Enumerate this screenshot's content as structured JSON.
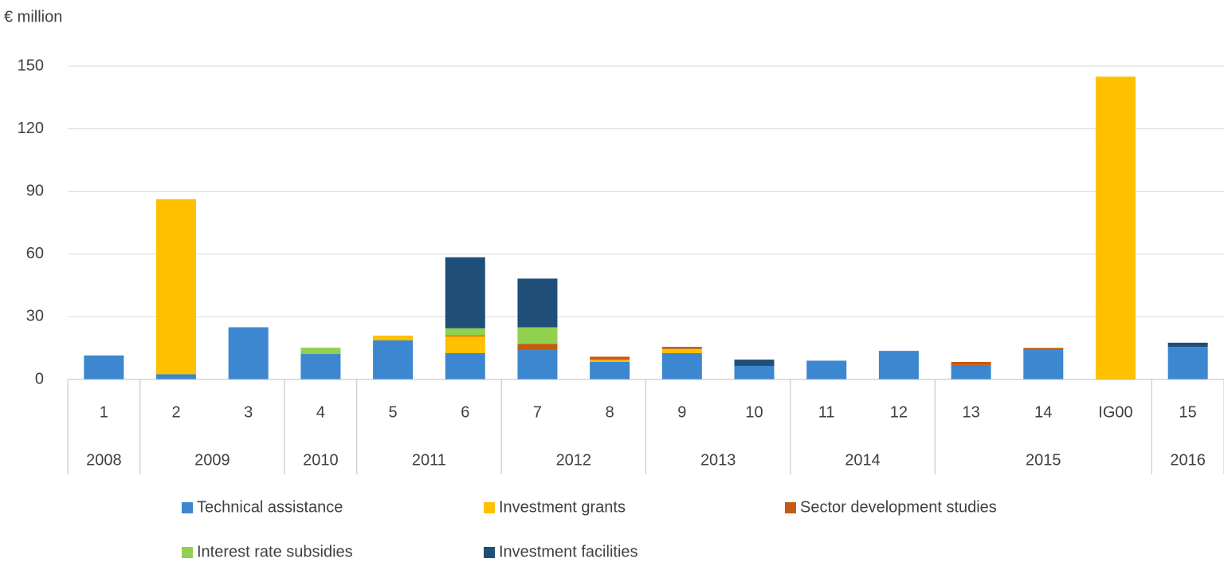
{
  "chart_data": {
    "type": "stacked_bar",
    "y_label": "€ million",
    "categories": [
      "1",
      "2",
      "3",
      "4",
      "5",
      "6",
      "7",
      "8",
      "9",
      "10",
      "11",
      "12",
      "13",
      "14",
      "IG00",
      "15"
    ],
    "groups": [
      {
        "name": "2008",
        "size": 1
      },
      {
        "name": "2009",
        "size": 2
      },
      {
        "name": "2010",
        "size": 1
      },
      {
        "name": "2011",
        "size": 2
      },
      {
        "name": "2012",
        "size": 2
      },
      {
        "name": "2013",
        "size": 2
      },
      {
        "name": "2014",
        "size": 2
      },
      {
        "name": "2015",
        "size": 3
      },
      {
        "name": "2016",
        "size": 1
      }
    ],
    "series": [
      {
        "name": "Technical assistance",
        "color": "#3c87d0",
        "values": [
          11.5,
          2.5,
          25,
          12.2,
          18.7,
          12.6,
          14.5,
          8.4,
          12.6,
          6.5,
          9,
          13.7,
          6.9,
          14.1,
          0,
          15.6
        ]
      },
      {
        "name": "Investment grants",
        "color": "#ffc000",
        "values": [
          0,
          83.8,
          0,
          0,
          2.3,
          8,
          0,
          1,
          2,
          0,
          0,
          0,
          0,
          0,
          145,
          0
        ]
      },
      {
        "name": "Sector development studies",
        "color": "#c55a11",
        "values": [
          0,
          0,
          0,
          0,
          0,
          0.5,
          2.5,
          1.5,
          1,
          0,
          0,
          0,
          1.5,
          1,
          0,
          0
        ]
      },
      {
        "name": "Interest rate subsidies",
        "color": "#92d050",
        "values": [
          0,
          0,
          0,
          3,
          0,
          3.4,
          8,
          0,
          0,
          0,
          0,
          0,
          0,
          0,
          0,
          0
        ]
      },
      {
        "name": "Investment facilities",
        "color": "#1f4e79",
        "values": [
          0,
          0,
          0,
          0,
          0,
          34,
          23.3,
          0,
          0,
          3,
          0,
          0,
          0,
          0,
          0,
          2
        ]
      }
    ],
    "ylim": [
      0,
      150
    ],
    "yticks": [
      0,
      30,
      60,
      90,
      120,
      150
    ],
    "grid": true
  }
}
